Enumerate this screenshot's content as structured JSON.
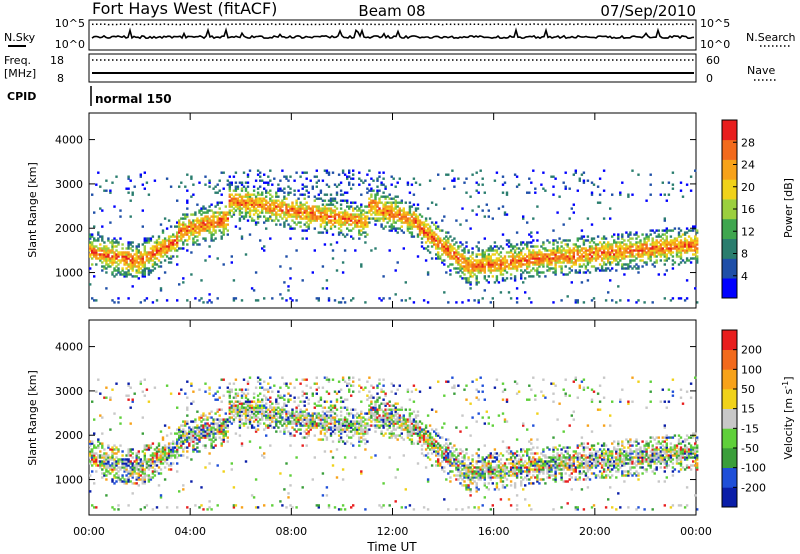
{
  "header": {
    "station": "Fort Hays West (fitACF)",
    "beam": "Beam 08",
    "date": "07/Sep/2010"
  },
  "noise_panel": {
    "left_label": "N.Sky",
    "right_label": "N.Search",
    "left_ticks": [
      "10^5",
      "10^0"
    ],
    "right_ticks": [
      "10^5",
      "10^0"
    ]
  },
  "freq_panel": {
    "left_label_line1": "Freq.",
    "left_label_line2": "[MHz]",
    "right_label": "Nave",
    "left_ticks": [
      "18",
      "8"
    ],
    "right_ticks": [
      "60",
      "0"
    ]
  },
  "cpid_panel": {
    "label": "CPID",
    "value": "normal 150"
  },
  "colors": {
    "power_scale": [
      "#0000ff",
      "#1f4fa8",
      "#2a7d6e",
      "#3fa64f",
      "#9bcf3e",
      "#f0d21a",
      "#f7a21a",
      "#f26a1c",
      "#e81e1e"
    ],
    "velocity_scale": [
      "#0a1ea8",
      "#1f4fd8",
      "#3a9e3a",
      "#5fd03a",
      "#c8c8c8",
      "#f0d21a",
      "#f7a21a",
      "#f26a1c",
      "#e81e1e"
    ]
  },
  "chart_data": [
    {
      "type": "heatmap",
      "name": "Power",
      "ylabel": "Slant Range [km]",
      "y_ticks": [
        "1000",
        "2000",
        "3000",
        "4000"
      ],
      "ylim": [
        200,
        4600
      ],
      "x_ticks": [
        "00:00",
        "04:00",
        "08:00",
        "12:00",
        "16:00",
        "20:00",
        "00:00"
      ],
      "colorbar_label": "Power [dB]",
      "colorbar_ticks": [
        "4",
        "8",
        "12",
        "16",
        "20",
        "24",
        "28"
      ],
      "colorbar_range": [
        0,
        32
      ]
    },
    {
      "type": "heatmap",
      "name": "Velocity",
      "ylabel": "Slant Range [km]",
      "y_ticks": [
        "1000",
        "2000",
        "3000",
        "4000"
      ],
      "ylim": [
        200,
        4600
      ],
      "x_ticks": [
        "00:00",
        "04:00",
        "08:00",
        "12:00",
        "16:00",
        "20:00",
        "00:00"
      ],
      "xlabel": "Time UT",
      "colorbar_label": "Velocity [m s^-1]",
      "colorbar_ticks": [
        "-200",
        "-100",
        "-50",
        "-15",
        "15",
        "50",
        "100",
        "200"
      ],
      "colorbar_range": [
        -250,
        250
      ]
    }
  ]
}
